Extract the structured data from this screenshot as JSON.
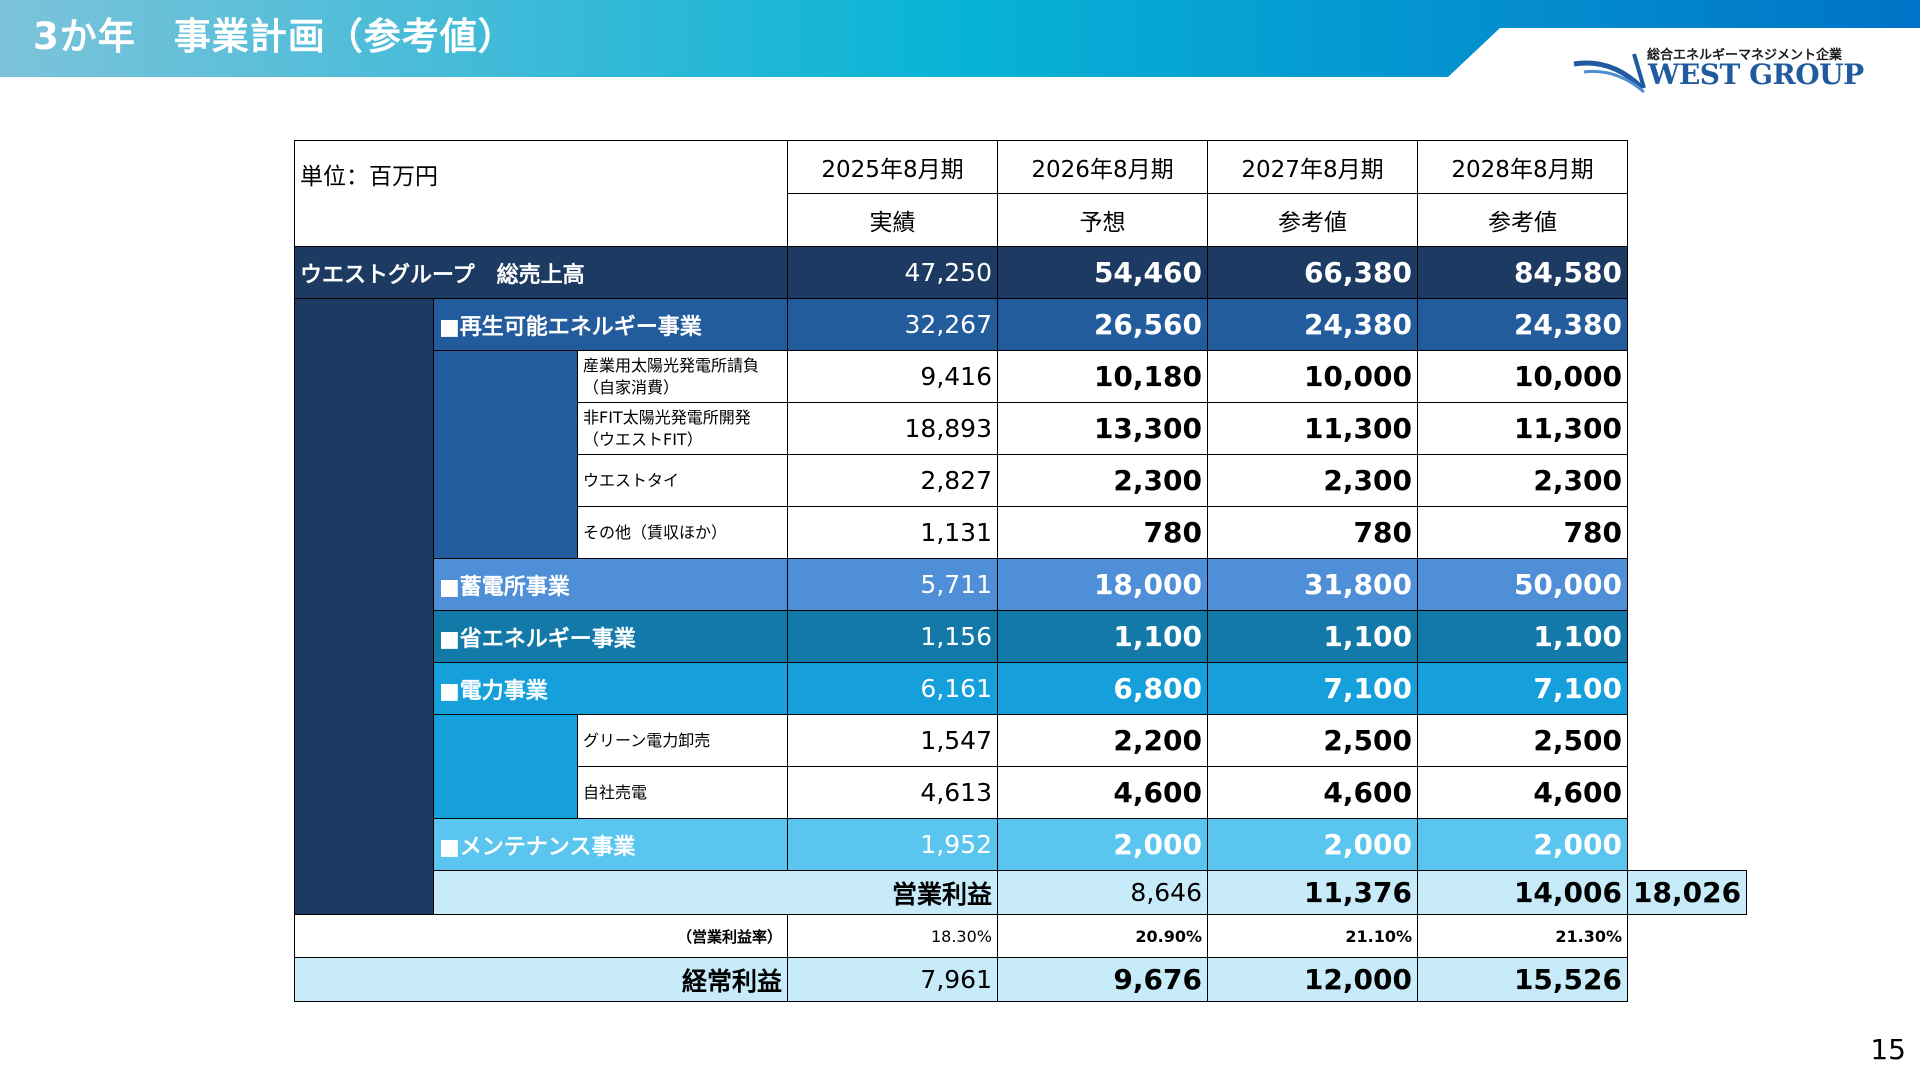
{
  "header": {
    "title": "3か年　事業計画（参考値）"
  },
  "logo": {
    "tagline": "総合エネルギーマネジメント企業",
    "name": "WEST GROUP"
  },
  "page_number": "15",
  "table": {
    "unit": "単位：百万円",
    "years": [
      "2025年8月期",
      "2026年8月期",
      "2027年8月期",
      "2028年8月期"
    ],
    "status": [
      "実績",
      "予想",
      "参考値",
      "参考値"
    ],
    "total": {
      "label": "ウエストグループ　総売上高",
      "values": [
        "47,250",
        "54,460",
        "66,380",
        "84,580"
      ]
    },
    "renewable": {
      "label": "■再生可能エネルギー事業",
      "values": [
        "32,267",
        "26,560",
        "24,380",
        "24,380"
      ],
      "items": [
        {
          "label1": "産業用太陽光発電所請負",
          "label2": "（自家消費）",
          "values": [
            "9,416",
            "10,180",
            "10,000",
            "10,000"
          ]
        },
        {
          "label1": "非FIT太陽光発電所開発",
          "label2": "（ウエストFIT）",
          "values": [
            "18,893",
            "13,300",
            "11,300",
            "11,300"
          ]
        },
        {
          "label1": "ウエストタイ",
          "label2": "",
          "values": [
            "2,827",
            "2,300",
            "2,300",
            "2,300"
          ]
        },
        {
          "label1": "その他（賃収ほか）",
          "label2": "",
          "values": [
            "1,131",
            "780",
            "780",
            "780"
          ]
        }
      ]
    },
    "storage": {
      "label": "■蓄電所事業",
      "values": [
        "5,711",
        "18,000",
        "31,800",
        "50,000"
      ]
    },
    "saving": {
      "label": "■省エネルギー事業",
      "values": [
        "1,156",
        "1,100",
        "1,100",
        "1,100"
      ]
    },
    "power": {
      "label": "■電力事業",
      "values": [
        "6,161",
        "6,800",
        "7,100",
        "7,100"
      ],
      "items": [
        {
          "label1": "グリーン電力卸売",
          "values": [
            "1,547",
            "2,200",
            "2,500",
            "2,500"
          ]
        },
        {
          "label1": "自社売電",
          "values": [
            "4,613",
            "4,600",
            "4,600",
            "4,600"
          ]
        }
      ]
    },
    "maintenance": {
      "label": "■メンテナンス事業",
      "values": [
        "1,952",
        "2,000",
        "2,000",
        "2,000"
      ]
    },
    "operating_profit": {
      "label": "営業利益",
      "values": [
        "8,646",
        "11,376",
        "14,006",
        "18,026"
      ]
    },
    "operating_margin": {
      "label": "（営業利益率）",
      "values": [
        "18.30%",
        "20.90%",
        "21.10%",
        "21.30%"
      ]
    },
    "ordinary_profit": {
      "label": "経常利益",
      "values": [
        "7,961",
        "9,676",
        "12,000",
        "15,526"
      ]
    }
  }
}
